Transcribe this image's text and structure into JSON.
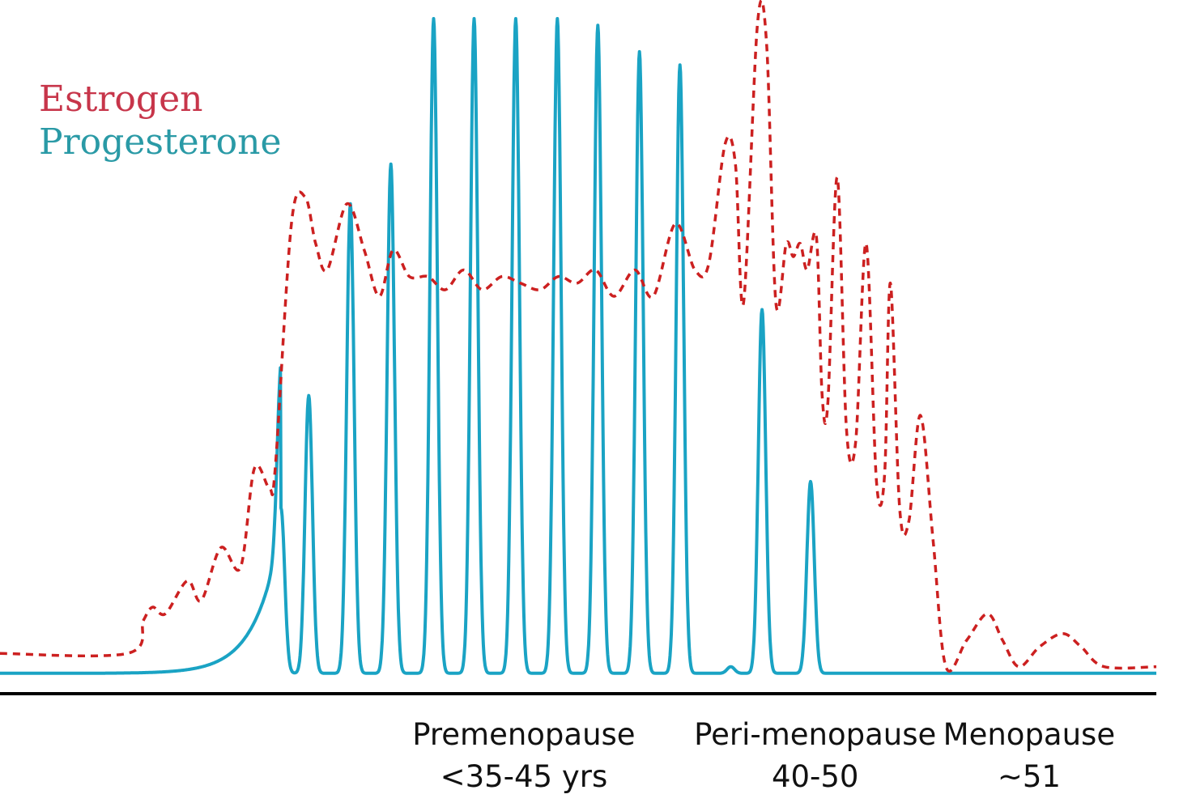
{
  "chart_data": {
    "type": "line",
    "title": "",
    "xlabel": "",
    "ylabel": "",
    "xlim": [
      0,
      100
    ],
    "ylim": [
      0,
      1
    ],
    "grid": false,
    "legend": {
      "placement": "top-left",
      "entries": [
        {
          "label": "Estrogen",
          "color": "#c7354a"
        },
        {
          "label": "Progesterone",
          "color": "#2a9aa6"
        }
      ]
    },
    "stages": [
      {
        "name": "Premenopause",
        "range": "<35-45 yrs",
        "x": 45.3
      },
      {
        "name": "Peri-menopause",
        "range": "40-50",
        "x": 70.5
      },
      {
        "name": "Menopause",
        "range": "~51",
        "x": 89.0
      }
    ],
    "series": [
      {
        "name": "Estrogen",
        "color": "#cc2020",
        "style": "dashed",
        "points": [
          [
            0,
            0.04
          ],
          [
            11,
            0.04
          ],
          [
            12.4,
            0.09
          ],
          [
            13.2,
            0.11
          ],
          [
            14.3,
            0.1
          ],
          [
            16.2,
            0.15
          ],
          [
            17.4,
            0.12
          ],
          [
            19.1,
            0.2
          ],
          [
            20.8,
            0.17
          ],
          [
            22.0,
            0.32
          ],
          [
            23.3,
            0.29
          ],
          [
            23.8,
            0.32
          ],
          [
            25.2,
            0.69
          ],
          [
            26.4,
            0.73
          ],
          [
            27.3,
            0.66
          ],
          [
            28.3,
            0.62
          ],
          [
            30.0,
            0.72
          ],
          [
            31.5,
            0.65
          ],
          [
            32.8,
            0.58
          ],
          [
            34.0,
            0.65
          ],
          [
            35.4,
            0.61
          ],
          [
            37.0,
            0.61
          ],
          [
            38.5,
            0.59
          ],
          [
            40.1,
            0.62
          ],
          [
            41.7,
            0.59
          ],
          [
            43.4,
            0.61
          ],
          [
            45.0,
            0.6
          ],
          [
            46.7,
            0.59
          ],
          [
            48.3,
            0.61
          ],
          [
            49.9,
            0.6
          ],
          [
            51.5,
            0.62
          ],
          [
            53.1,
            0.58
          ],
          [
            54.9,
            0.62
          ],
          [
            56.5,
            0.58
          ],
          [
            58.4,
            0.69
          ],
          [
            60.1,
            0.62
          ],
          [
            61.3,
            0.63
          ],
          [
            62.7,
            0.81
          ],
          [
            63.6,
            0.78
          ],
          [
            64.3,
            0.57
          ],
          [
            65.5,
            0.99
          ],
          [
            66.3,
            0.96
          ],
          [
            67.1,
            0.57
          ],
          [
            68.0,
            0.66
          ],
          [
            68.6,
            0.64
          ],
          [
            69.2,
            0.66
          ],
          [
            69.8,
            0.62
          ],
          [
            70.6,
            0.67
          ],
          [
            71.1,
            0.43
          ],
          [
            71.6,
            0.42
          ],
          [
            72.4,
            0.76
          ],
          [
            73.2,
            0.38
          ],
          [
            74.0,
            0.36
          ],
          [
            74.9,
            0.66
          ],
          [
            75.8,
            0.3
          ],
          [
            76.5,
            0.31
          ],
          [
            77.0,
            0.6
          ],
          [
            77.8,
            0.26
          ],
          [
            78.6,
            0.24
          ],
          [
            79.6,
            0.4
          ],
          [
            80.7,
            0.21
          ],
          [
            81.8,
            0.02
          ],
          [
            83.6,
            0.06
          ],
          [
            85.4,
            0.1
          ],
          [
            86.7,
            0.06
          ],
          [
            88.1,
            0.02
          ],
          [
            89.9,
            0.05
          ],
          [
            91.9,
            0.07
          ],
          [
            93.5,
            0.05
          ],
          [
            95.5,
            0.02
          ],
          [
            100,
            0.02
          ]
        ]
      },
      {
        "name": "Progesterone",
        "color": "#1aa3c4",
        "style": "solid",
        "baseline": 0.01,
        "peaks": [
          {
            "x": 24.3,
            "peak": 0.26
          },
          {
            "x": 26.7,
            "peak": 0.43
          },
          {
            "x": 30.3,
            "peak": 0.72
          },
          {
            "x": 33.8,
            "peak": 0.78
          },
          {
            "x": 37.5,
            "peak": 1.0
          },
          {
            "x": 41.0,
            "peak": 1.0
          },
          {
            "x": 44.6,
            "peak": 1.0
          },
          {
            "x": 48.2,
            "peak": 1.0
          },
          {
            "x": 51.7,
            "peak": 0.99
          },
          {
            "x": 55.3,
            "peak": 0.95
          },
          {
            "x": 58.8,
            "peak": 0.93
          },
          {
            "x": 63.2,
            "peak": 0.02
          },
          {
            "x": 65.9,
            "peak": 0.56
          },
          {
            "x": 68.4,
            "peak": 0.01
          },
          {
            "x": 70.1,
            "peak": 0.3
          }
        ]
      }
    ]
  }
}
